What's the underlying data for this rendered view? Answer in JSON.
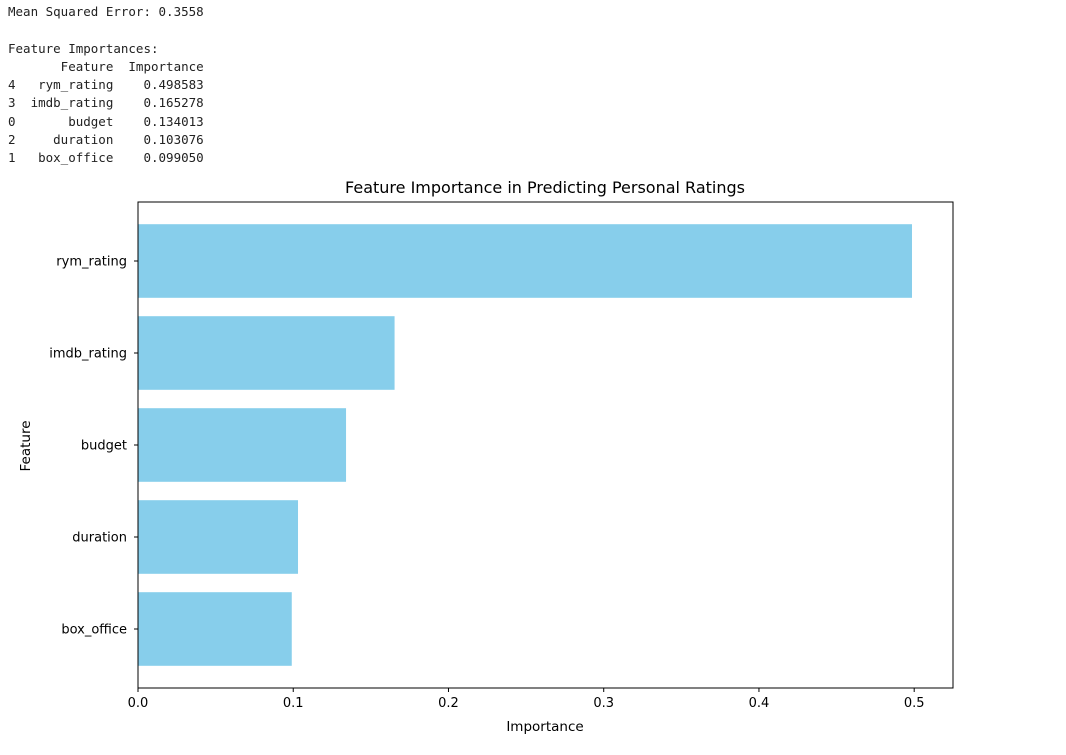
{
  "console": {
    "lines": [
      "Mean Squared Error: 0.3558",
      "",
      "Feature Importances:",
      "       Feature  Importance",
      "4   rym_rating    0.498583",
      "3  imdb_rating    0.165278",
      "0       budget    0.134013",
      "2     duration    0.103076",
      "1   box_office    0.099050"
    ]
  },
  "chart_data": {
    "type": "bar",
    "orientation": "horizontal",
    "title": "Feature Importance in Predicting Personal Ratings",
    "xlabel": "Importance",
    "ylabel": "Feature",
    "categories": [
      "rym_rating",
      "imdb_rating",
      "budget",
      "duration",
      "box_office"
    ],
    "values": [
      0.498583,
      0.165278,
      0.134013,
      0.103076,
      0.09905
    ],
    "xlim": [
      0,
      0.525
    ],
    "xticks": [
      0.0,
      0.1,
      0.2,
      0.3,
      0.4,
      0.5
    ],
    "xtick_labels": [
      "0.0",
      "0.1",
      "0.2",
      "0.3",
      "0.4",
      "0.5"
    ],
    "grid": false,
    "bar_color": "#87ceeb",
    "axis_color": "#000000"
  }
}
